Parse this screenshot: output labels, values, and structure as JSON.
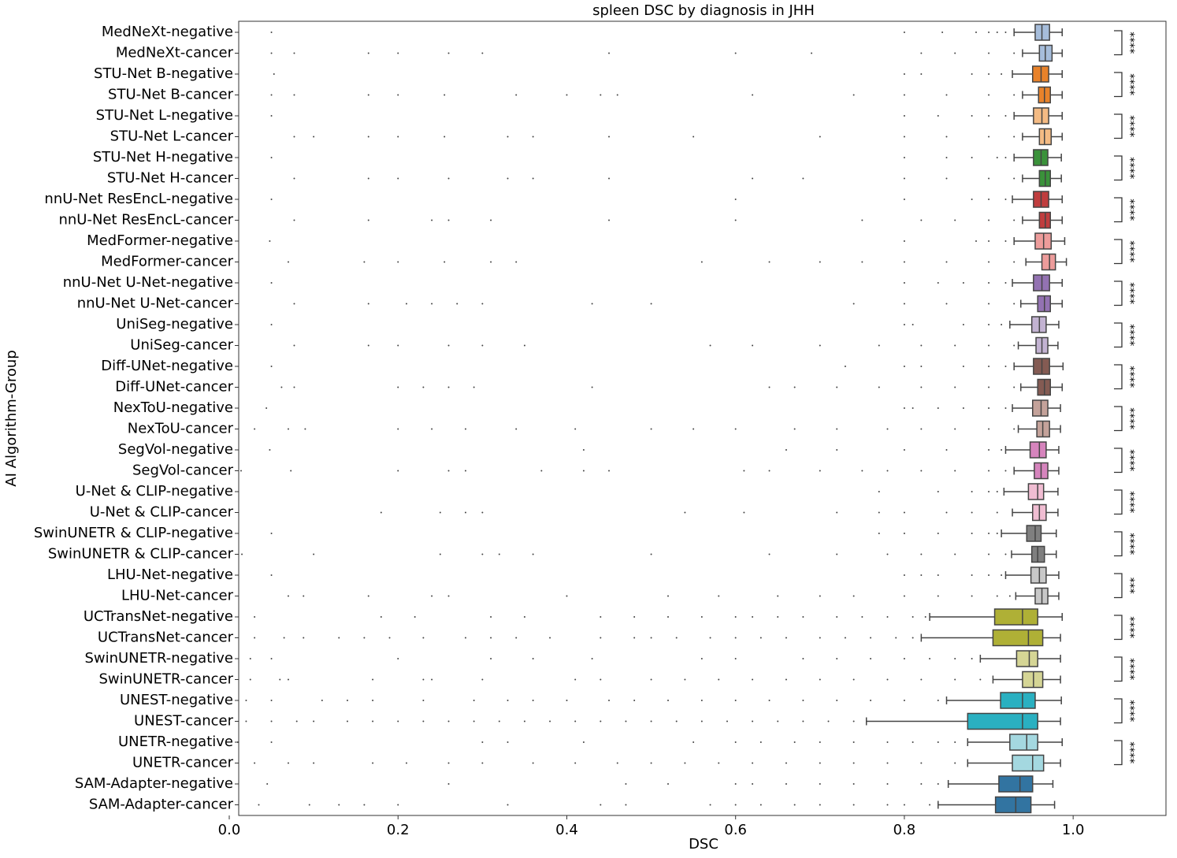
{
  "chart_data": {
    "type": "box",
    "title": "spleen DSC by diagnosis in JHH",
    "x_label": "DSC",
    "y_label": "AI Algorithm-Group",
    "xlim": [
      0,
      1.11
    ],
    "xticks": [
      {
        "value": 0,
        "label": "0.0"
      },
      0.2,
      0.4,
      0.6,
      0.8,
      {
        "value": 1,
        "label": "1.0"
      }
    ],
    "categories": [
      "MedNeXt-negative",
      "MedNeXt-cancer",
      "STU-Net B-negative",
      "STU-Net B-cancer",
      "STU-Net L-negative",
      "STU-Net L-cancer",
      "STU-Net H-negative",
      "STU-Net H-cancer",
      "nnU-Net ResEncL-negative",
      "nnU-Net ResEncL-cancer",
      "MedFormer-negative",
      "MedFormer-cancer",
      "nnU-Net U-Net-negative",
      "nnU-Net U-Net-cancer",
      "UniSeg-negative",
      "UniSeg-cancer",
      "Diff-UNet-negative",
      "Diff-UNet-cancer",
      "NexToU-negative",
      "NexToU-cancer",
      "SegVol-negative",
      "SegVol-cancer",
      "U-Net & CLIP-negative",
      "U-Net & CLIP-cancer",
      "SwinUNETR & CLIP-negative",
      "SwinUNETR & CLIP-cancer",
      "LHU-Net-negative",
      "LHU-Net-cancer",
      "UCTransNet-negative",
      "UCTransNet-cancer",
      "SwinUNETR-negative",
      "SwinUNETR-cancer",
      "UNEST-negative",
      "UNEST-cancer",
      "UNETR-negative",
      "UNETR-cancer",
      "SAM-Adapter-negative",
      "SAM-Adapter-cancer"
    ],
    "boxes": [
      {
        "lo": 0.93,
        "q1": 0.955,
        "med": 0.963,
        "q3": 0.972,
        "hi": 0.987,
        "color": "#a6bddb"
      },
      {
        "lo": 0.94,
        "q1": 0.96,
        "med": 0.967,
        "q3": 0.975,
        "hi": 0.987,
        "color": "#a6bddb"
      },
      {
        "lo": 0.928,
        "q1": 0.952,
        "med": 0.962,
        "q3": 0.971,
        "hi": 0.987,
        "color": "#e8822a"
      },
      {
        "lo": 0.94,
        "q1": 0.959,
        "med": 0.966,
        "q3": 0.973,
        "hi": 0.987,
        "color": "#e8822a"
      },
      {
        "lo": 0.93,
        "q1": 0.953,
        "med": 0.963,
        "q3": 0.971,
        "hi": 0.987,
        "color": "#f4bb84"
      },
      {
        "lo": 0.94,
        "q1": 0.96,
        "med": 0.966,
        "q3": 0.974,
        "hi": 0.987,
        "color": "#f4bb84"
      },
      {
        "lo": 0.93,
        "q1": 0.953,
        "med": 0.962,
        "q3": 0.97,
        "hi": 0.986,
        "color": "#3a923a"
      },
      {
        "lo": 0.94,
        "q1": 0.96,
        "med": 0.967,
        "q3": 0.973,
        "hi": 0.986,
        "color": "#3a923a"
      },
      {
        "lo": 0.928,
        "q1": 0.953,
        "med": 0.962,
        "q3": 0.971,
        "hi": 0.987,
        "color": "#c03d3e"
      },
      {
        "lo": 0.94,
        "q1": 0.96,
        "med": 0.967,
        "q3": 0.973,
        "hi": 0.987,
        "color": "#c03d3e"
      },
      {
        "lo": 0.93,
        "q1": 0.955,
        "med": 0.965,
        "q3": 0.974,
        "hi": 0.99,
        "color": "#ed9c9b"
      },
      {
        "lo": 0.944,
        "q1": 0.963,
        "med": 0.972,
        "q3": 0.979,
        "hi": 0.992,
        "color": "#ed9c9b"
      },
      {
        "lo": 0.928,
        "q1": 0.953,
        "med": 0.963,
        "q3": 0.972,
        "hi": 0.987,
        "color": "#9372b2"
      },
      {
        "lo": 0.938,
        "q1": 0.958,
        "med": 0.966,
        "q3": 0.973,
        "hi": 0.987,
        "color": "#9372b2"
      },
      {
        "lo": 0.925,
        "q1": 0.951,
        "med": 0.96,
        "q3": 0.968,
        "hi": 0.983,
        "color": "#c3b3d2"
      },
      {
        "lo": 0.935,
        "q1": 0.956,
        "med": 0.963,
        "q3": 0.97,
        "hi": 0.982,
        "color": "#c3b3d2"
      },
      {
        "lo": 0.93,
        "q1": 0.953,
        "med": 0.963,
        "q3": 0.972,
        "hi": 0.988,
        "color": "#845b53"
      },
      {
        "lo": 0.938,
        "q1": 0.958,
        "med": 0.966,
        "q3": 0.973,
        "hi": 0.987,
        "color": "#845b53"
      },
      {
        "lo": 0.928,
        "q1": 0.952,
        "med": 0.962,
        "q3": 0.97,
        "hi": 0.985,
        "color": "#c4a29a"
      },
      {
        "lo": 0.935,
        "q1": 0.957,
        "med": 0.964,
        "q3": 0.972,
        "hi": 0.985,
        "color": "#c4a29a"
      },
      {
        "lo": 0.92,
        "q1": 0.949,
        "med": 0.96,
        "q3": 0.968,
        "hi": 0.983,
        "color": "#d684bd"
      },
      {
        "lo": 0.93,
        "q1": 0.954,
        "med": 0.962,
        "q3": 0.97,
        "hi": 0.983,
        "color": "#d684bd"
      },
      {
        "lo": 0.918,
        "q1": 0.947,
        "med": 0.958,
        "q3": 0.965,
        "hi": 0.982,
        "color": "#f0bdd2"
      },
      {
        "lo": 0.928,
        "q1": 0.952,
        "med": 0.96,
        "q3": 0.968,
        "hi": 0.982,
        "color": "#f0bdd2"
      },
      {
        "lo": 0.915,
        "q1": 0.945,
        "med": 0.955,
        "q3": 0.962,
        "hi": 0.98,
        "color": "#7f7f7f"
      },
      {
        "lo": 0.927,
        "q1": 0.951,
        "med": 0.958,
        "q3": 0.966,
        "hi": 0.98,
        "color": "#7f7f7f"
      },
      {
        "lo": 0.92,
        "q1": 0.95,
        "med": 0.96,
        "q3": 0.968,
        "hi": 0.983,
        "color": "#c8c8c8"
      },
      {
        "lo": 0.932,
        "q1": 0.955,
        "med": 0.963,
        "q3": 0.97,
        "hi": 0.983,
        "color": "#c8c8c8"
      },
      {
        "lo": 0.83,
        "q1": 0.907,
        "med": 0.94,
        "q3": 0.958,
        "hi": 0.987,
        "color": "#afb036"
      },
      {
        "lo": 0.82,
        "q1": 0.905,
        "med": 0.947,
        "q3": 0.964,
        "hi": 0.985,
        "color": "#afb036"
      },
      {
        "lo": 0.89,
        "q1": 0.933,
        "med": 0.948,
        "q3": 0.958,
        "hi": 0.985,
        "color": "#d5d595"
      },
      {
        "lo": 0.905,
        "q1": 0.94,
        "med": 0.953,
        "q3": 0.964,
        "hi": 0.985,
        "color": "#d5d595"
      },
      {
        "lo": 0.85,
        "q1": 0.914,
        "med": 0.94,
        "q3": 0.955,
        "hi": 0.986,
        "color": "#2ab0c1"
      },
      {
        "lo": 0.755,
        "q1": 0.875,
        "med": 0.94,
        "q3": 0.958,
        "hi": 0.985,
        "color": "#2ab0c1"
      },
      {
        "lo": 0.875,
        "q1": 0.925,
        "med": 0.945,
        "q3": 0.958,
        "hi": 0.987,
        "color": "#a4d8e0"
      },
      {
        "lo": 0.875,
        "q1": 0.928,
        "med": 0.952,
        "q3": 0.965,
        "hi": 0.985,
        "color": "#a4d8e0"
      },
      {
        "lo": 0.852,
        "q1": 0.912,
        "med": 0.937,
        "q3": 0.952,
        "hi": 0.976,
        "color": "#3274a1"
      },
      {
        "lo": 0.84,
        "q1": 0.908,
        "med": 0.932,
        "q3": 0.95,
        "hi": 0.978,
        "color": "#3274a1"
      }
    ],
    "outliers": [
      [
        0.05,
        0.8,
        0.845,
        0.885,
        0.9,
        0.91,
        0.92
      ],
      [
        0.05,
        0.077,
        0.165,
        0.2,
        0.26,
        0.3,
        0.45,
        0.6,
        0.69,
        0.82,
        0.86,
        0.9,
        0.93
      ],
      [
        0.053,
        0.8,
        0.82,
        0.88,
        0.9,
        0.915
      ],
      [
        0.05,
        0.077,
        0.165,
        0.2,
        0.255,
        0.34,
        0.4,
        0.44,
        0.46,
        0.62,
        0.74,
        0.8,
        0.85,
        0.9,
        0.93
      ],
      [
        0.05,
        0.8,
        0.84,
        0.88,
        0.9,
        0.92
      ],
      [
        0.077,
        0.1,
        0.165,
        0.2,
        0.255,
        0.33,
        0.36,
        0.45,
        0.55,
        0.7,
        0.8,
        0.85,
        0.9,
        0.93
      ],
      [
        0.05,
        0.8,
        0.85,
        0.88,
        0.91,
        0.92
      ],
      [
        0.077,
        0.165,
        0.2,
        0.26,
        0.33,
        0.36,
        0.45,
        0.62,
        0.68,
        0.8,
        0.85,
        0.9,
        0.93
      ],
      [
        0.05,
        0.6,
        0.8,
        0.88,
        0.9,
        0.92
      ],
      [
        0.0,
        0.077,
        0.165,
        0.24,
        0.26,
        0.31,
        0.45,
        0.6,
        0.75,
        0.82,
        0.86,
        0.9,
        0.93
      ],
      [
        0.048,
        0.8,
        0.885,
        0.9,
        0.92
      ],
      [
        0.07,
        0.16,
        0.2,
        0.255,
        0.31,
        0.34,
        0.56,
        0.64,
        0.7,
        0.75,
        0.8,
        0.85,
        0.9,
        0.93
      ],
      [
        0.05,
        0.8,
        0.84,
        0.87,
        0.9,
        0.92
      ],
      [
        0.077,
        0.165,
        0.21,
        0.24,
        0.27,
        0.3,
        0.43,
        0.5,
        0.74,
        0.8,
        0.85,
        0.9,
        0.93
      ],
      [
        0.05,
        0.8,
        0.81,
        0.87,
        0.9,
        0.915
      ],
      [
        0.077,
        0.165,
        0.2,
        0.26,
        0.3,
        0.35,
        0.57,
        0.62,
        0.7,
        0.77,
        0.82,
        0.86,
        0.9,
        0.93
      ],
      [
        0.05,
        0.73,
        0.8,
        0.82,
        0.87,
        0.9,
        0.92
      ],
      [
        0.062,
        0.077,
        0.2,
        0.23,
        0.26,
        0.29,
        0.43,
        0.64,
        0.67,
        0.72,
        0.77,
        0.82,
        0.86,
        0.9,
        0.93
      ],
      [
        0.044,
        0.8,
        0.81,
        0.84,
        0.87,
        0.9,
        0.92
      ],
      [
        0.0,
        0.03,
        0.07,
        0.09,
        0.2,
        0.24,
        0.28,
        0.34,
        0.41,
        0.5,
        0.55,
        0.6,
        0.67,
        0.72,
        0.78,
        0.82,
        0.86,
        0.9,
        0.93
      ],
      [
        0.048,
        0.42,
        0.66,
        0.72,
        0.8,
        0.85,
        0.9,
        0.915
      ],
      [
        0.014,
        0.073,
        0.2,
        0.26,
        0.28,
        0.37,
        0.42,
        0.45,
        0.61,
        0.64,
        0.7,
        0.75,
        0.78,
        0.82,
        0.86,
        0.9,
        0.92
      ],
      [
        0.77,
        0.84,
        0.88,
        0.9,
        0.91
      ],
      [
        0.18,
        0.25,
        0.28,
        0.3,
        0.54,
        0.61,
        0.72,
        0.77,
        0.8,
        0.85,
        0.88,
        0.91
      ],
      [
        0.05,
        0.77,
        0.8,
        0.84,
        0.88,
        0.9,
        0.91
      ],
      [
        0.015,
        0.1,
        0.25,
        0.3,
        0.32,
        0.36,
        0.5,
        0.64,
        0.72,
        0.78,
        0.82,
        0.86,
        0.9,
        0.92
      ],
      [
        0.05,
        0.8,
        0.82,
        0.84,
        0.88,
        0.9,
        0.915
      ],
      [
        0.07,
        0.088,
        0.165,
        0.24,
        0.26,
        0.4,
        0.52,
        0.58,
        0.65,
        0.7,
        0.74,
        0.8,
        0.84,
        0.88,
        0.91,
        0.925
      ],
      [
        0.03,
        0.18,
        0.22,
        0.31,
        0.35,
        0.44,
        0.48,
        0.52,
        0.56,
        0.6,
        0.62,
        0.65,
        0.68,
        0.72,
        0.75,
        0.78,
        0.81,
        0.825
      ],
      [
        0.0,
        0.03,
        0.065,
        0.088,
        0.13,
        0.16,
        0.19,
        0.23,
        0.28,
        0.31,
        0.34,
        0.38,
        0.44,
        0.48,
        0.5,
        0.53,
        0.57,
        0.6,
        0.63,
        0.66,
        0.7,
        0.73,
        0.76,
        0.79,
        0.81
      ],
      [
        0.025,
        0.05,
        0.2,
        0.31,
        0.36,
        0.43,
        0.56,
        0.6,
        0.68,
        0.72,
        0.76,
        0.8,
        0.83,
        0.86,
        0.88
      ],
      [
        0.025,
        0.06,
        0.07,
        0.17,
        0.23,
        0.24,
        0.3,
        0.41,
        0.44,
        0.5,
        0.54,
        0.58,
        0.62,
        0.66,
        0.7,
        0.74,
        0.78,
        0.82,
        0.86,
        0.89
      ],
      [
        0.0,
        0.02,
        0.05,
        0.11,
        0.14,
        0.17,
        0.23,
        0.29,
        0.33,
        0.36,
        0.4,
        0.45,
        0.48,
        0.52,
        0.56,
        0.6,
        0.64,
        0.68,
        0.72,
        0.76,
        0.8,
        0.84
      ],
      [
        0.0,
        0.02,
        0.05,
        0.08,
        0.1,
        0.14,
        0.17,
        0.2,
        0.23,
        0.26,
        0.29,
        0.32,
        0.35,
        0.38,
        0.41,
        0.44,
        0.47,
        0.5,
        0.53,
        0.56,
        0.59,
        0.62,
        0.65,
        0.68,
        0.71,
        0.74
      ],
      [
        0.01,
        0.05,
        0.3,
        0.33,
        0.42,
        0.55,
        0.6,
        0.63,
        0.67,
        0.7,
        0.74,
        0.78,
        0.81,
        0.84,
        0.86
      ],
      [
        0.03,
        0.07,
        0.1,
        0.17,
        0.21,
        0.26,
        0.3,
        0.36,
        0.41,
        0.46,
        0.5,
        0.54,
        0.58,
        0.62,
        0.66,
        0.7,
        0.74,
        0.78,
        0.82,
        0.86
      ],
      [
        0.045,
        0.26,
        0.47,
        0.52,
        0.6,
        0.62,
        0.66,
        0.7,
        0.74,
        0.78,
        0.82,
        0.84
      ],
      [
        0.035,
        0.095,
        0.13,
        0.16,
        0.2,
        0.33,
        0.44,
        0.47,
        0.57,
        0.6,
        0.63,
        0.67,
        0.7,
        0.74,
        0.78,
        0.8,
        0.83
      ]
    ],
    "significance": [
      "****",
      "****",
      "****",
      "****",
      "****",
      "****",
      "****",
      "****",
      "****",
      "****",
      "****",
      "****",
      "****",
      "***",
      "****",
      "****",
      "****",
      "****"
    ]
  }
}
